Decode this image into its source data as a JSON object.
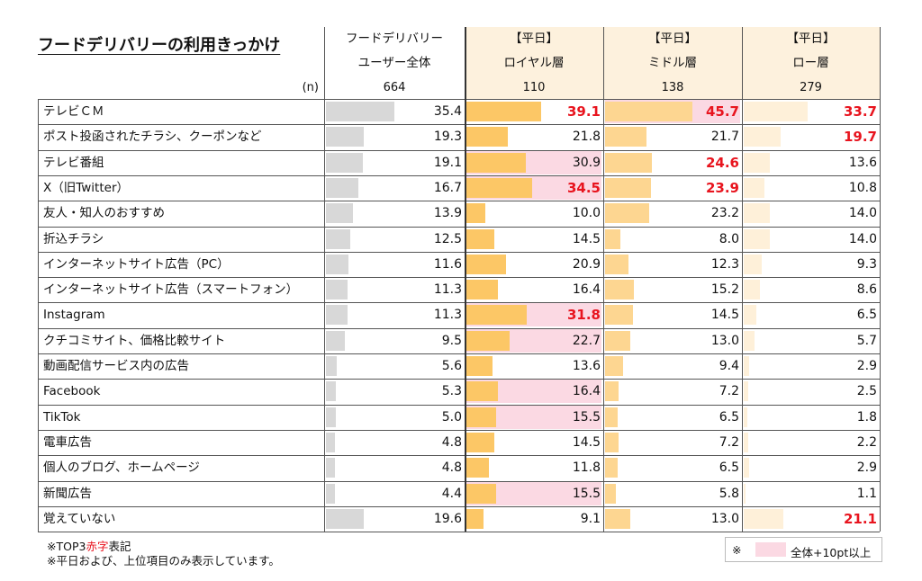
{
  "title": "フードデリバリーの利用きっかけ",
  "n_label": "(n)",
  "columns": [
    {
      "line1": "フードデリバリー",
      "line2": "ユーザー全体",
      "n": "664",
      "bar_color": "#d8d8d8"
    },
    {
      "line1": "【平日】",
      "line2": "ロイヤル層",
      "n": "110",
      "bar_color": "#fcc766"
    },
    {
      "line1": "【平日】",
      "line2": "ミドル層",
      "n": "138",
      "bar_color": "#fdd691"
    },
    {
      "line1": "【平日】",
      "line2": "ロー層",
      "n": "279",
      "bar_color": "#fef0d9"
    }
  ],
  "colors": {
    "highlight": "#fbd9e3",
    "top3_red": "#e8141e",
    "sub_header_bg": "#fdf1dd"
  },
  "chart_data": {
    "type": "bar",
    "title": "フードデリバリーの利用きっかけ",
    "categories": [
      "テレビＣＭ",
      "ポスト投函されたチラシ、クーポンなど",
      "テレビ番組",
      "X（旧Twitter）",
      "友人・知人のおすすめ",
      "折込チラシ",
      "インターネットサイト広告（PC）",
      "インターネットサイト広告（スマートフォン）",
      "Instagram",
      "クチコミサイト、価格比較サイト",
      "動画配信サービス内の広告",
      "Facebook",
      "TikTok",
      "電車広告",
      "個人のブログ、ホームページ",
      "新聞広告",
      "覚えていない"
    ],
    "series": [
      {
        "name": "フードデリバリーユーザー全体",
        "n": "664",
        "values": [
          "35.4",
          "19.3",
          "19.1",
          "16.7",
          "13.9",
          "12.5",
          "11.6",
          "11.3",
          "11.3",
          "9.5",
          "5.6",
          "5.3",
          "5.0",
          "4.8",
          "4.8",
          "4.4",
          "19.6"
        ],
        "top3": [],
        "highlight": []
      },
      {
        "name": "【平日】ロイヤル層",
        "n": "110",
        "values": [
          "39.1",
          "21.8",
          "30.9",
          "34.5",
          "10.0",
          "14.5",
          "20.9",
          "16.4",
          "31.8",
          "22.7",
          "13.6",
          "16.4",
          "15.5",
          "14.5",
          "11.8",
          "15.5",
          "9.1"
        ],
        "top3": [
          0,
          3,
          8
        ],
        "highlight": [
          2,
          3,
          8,
          9,
          11,
          12,
          15
        ]
      },
      {
        "name": "【平日】ミドル層",
        "n": "138",
        "values": [
          "45.7",
          "21.7",
          "24.6",
          "23.9",
          "23.2",
          "8.0",
          "12.3",
          "15.2",
          "14.5",
          "13.0",
          "9.4",
          "7.2",
          "6.5",
          "7.2",
          "6.5",
          "5.8",
          "13.0"
        ],
        "top3": [
          0,
          2,
          3
        ],
        "highlight": [
          0
        ]
      },
      {
        "name": "【平日】ロー層",
        "n": "279",
        "values": [
          "33.7",
          "19.7",
          "13.6",
          "10.8",
          "14.0",
          "14.0",
          "9.3",
          "8.6",
          "6.5",
          "5.7",
          "2.9",
          "2.5",
          "1.8",
          "2.2",
          "2.9",
          "1.1",
          "21.1"
        ],
        "top3": [
          0,
          1,
          16
        ],
        "highlight": []
      }
    ],
    "value_max": 50
  },
  "footnotes": {
    "line1_prefix": "※TOP3",
    "line1_red": "赤字",
    "line1_suffix": "表記",
    "line2": "※平日および、上位項目のみ表示しています。"
  },
  "legend": {
    "mark": "※",
    "text": "全体+10pt以上"
  }
}
